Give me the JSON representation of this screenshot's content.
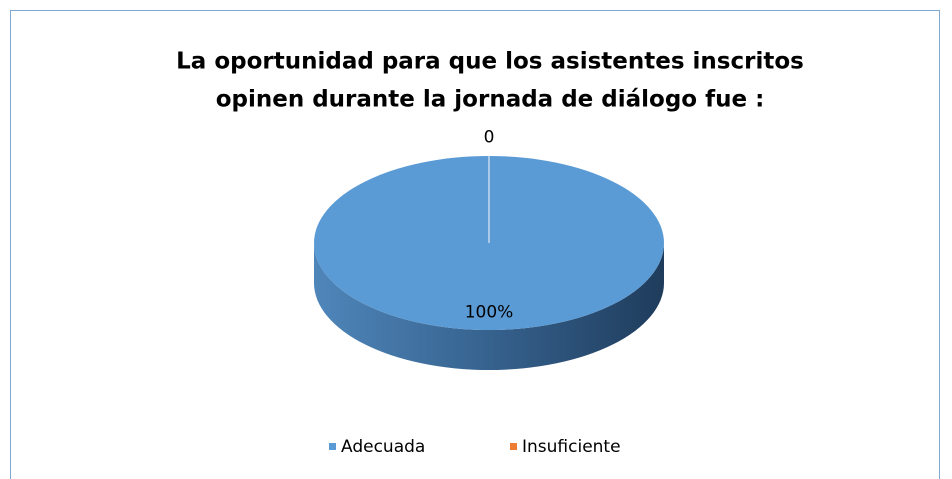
{
  "chart_data": {
    "type": "pie",
    "title": [
      "La oportunidad para que los asistentes inscritos",
      "opinen durante la jornada de diálogo fue :"
    ],
    "categories": [
      "Adecuada",
      "Insuficiente"
    ],
    "values": [
      100,
      0
    ],
    "value_labels": [
      "100%",
      "0"
    ],
    "colors": [
      "#5b9bd5",
      "#ed7d31"
    ],
    "legend": "bottom"
  }
}
